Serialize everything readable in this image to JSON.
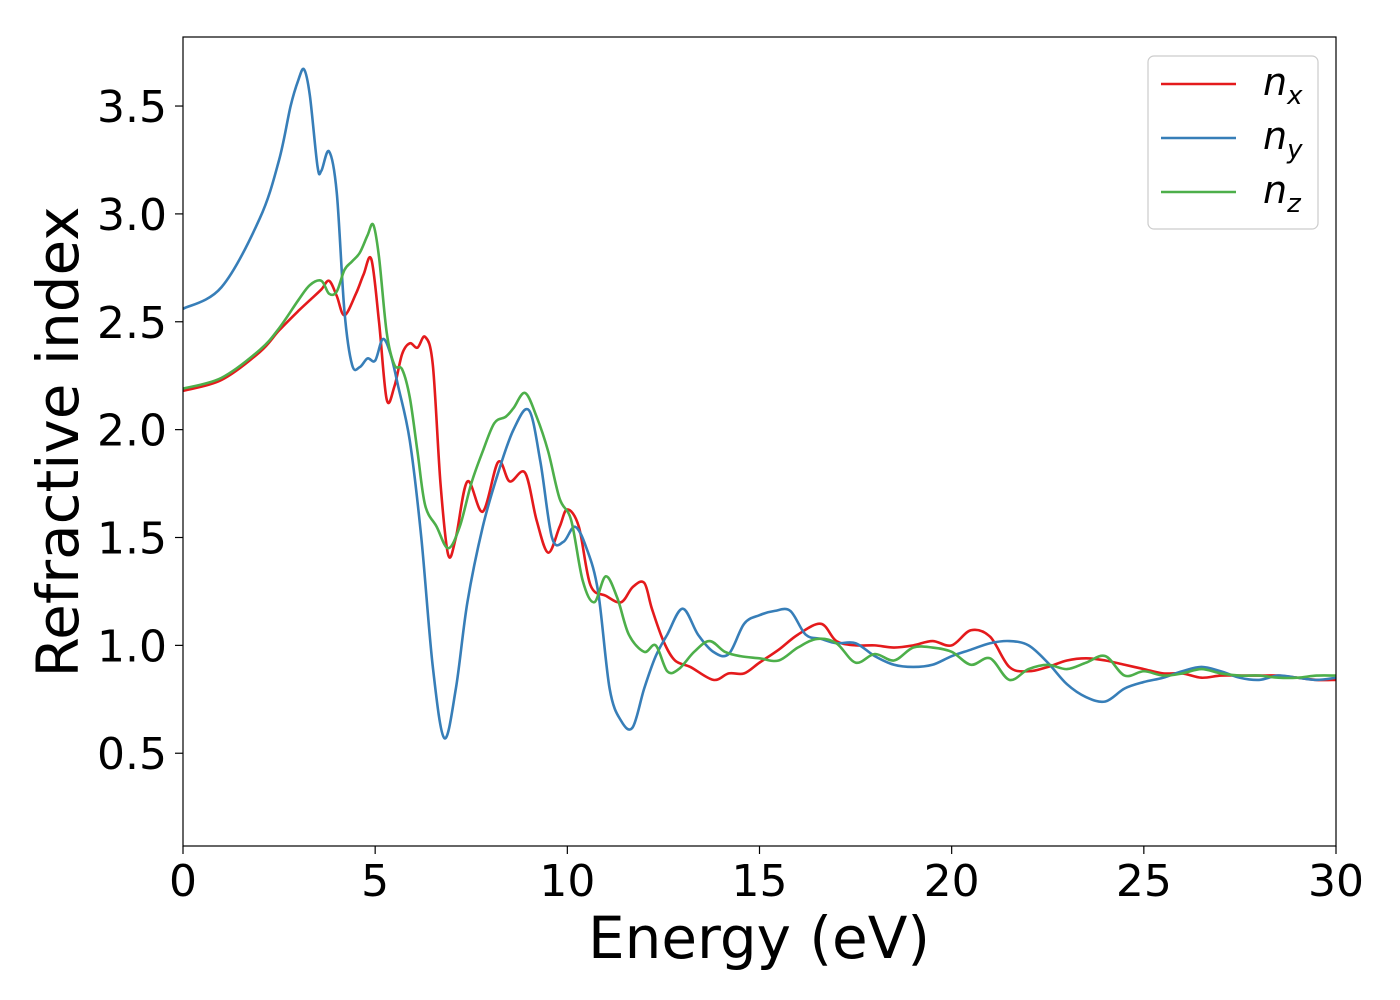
{
  "chart_data": {
    "type": "line",
    "xlabel": "Energy (eV)",
    "ylabel": "Refractive index",
    "xlim": [
      0,
      30
    ],
    "ylim": [
      0.07,
      3.82
    ],
    "xticks": [
      "0",
      "5",
      "10",
      "15",
      "20",
      "25",
      "30"
    ],
    "yticks": [
      "0.5",
      "1.0",
      "1.5",
      "2.0",
      "2.5",
      "3.0",
      "3.5"
    ],
    "grid": false,
    "legend_position": "top-right",
    "series": [
      {
        "name": "n_x",
        "label_base": "n",
        "label_sub": "x",
        "color": "#e41a1c",
        "x": [
          0,
          1,
          2,
          2.5,
          3,
          3.3,
          3.6,
          3.8,
          4.0,
          4.2,
          4.5,
          4.7,
          4.9,
          5.1,
          5.3,
          5.5,
          5.7,
          5.9,
          6.1,
          6.3,
          6.5,
          6.7,
          6.9,
          7.1,
          7.4,
          7.8,
          8.2,
          8.5,
          8.9,
          9.2,
          9.5,
          9.8,
          10.0,
          10.3,
          10.6,
          11.0,
          11.4,
          11.7,
          12.0,
          12.2,
          12.5,
          12.8,
          13.2,
          13.8,
          14.2,
          14.6,
          15.0,
          15.5,
          16.0,
          16.6,
          17.0,
          17.5,
          18.0,
          18.5,
          19.0,
          19.5,
          20.0,
          20.5,
          21.0,
          21.5,
          22.0,
          22.5,
          23.0,
          23.5,
          24.0,
          24.5,
          25.0,
          25.5,
          26.0,
          26.5,
          27.0,
          27.5,
          28.0,
          28.5,
          29.0,
          29.5,
          30.0
        ],
        "y": [
          2.18,
          2.23,
          2.36,
          2.46,
          2.55,
          2.6,
          2.65,
          2.69,
          2.62,
          2.53,
          2.63,
          2.72,
          2.79,
          2.5,
          2.14,
          2.2,
          2.35,
          2.4,
          2.38,
          2.43,
          2.3,
          1.75,
          1.42,
          1.5,
          1.76,
          1.62,
          1.85,
          1.76,
          1.8,
          1.58,
          1.43,
          1.55,
          1.63,
          1.55,
          1.28,
          1.23,
          1.2,
          1.27,
          1.29,
          1.17,
          1.02,
          0.93,
          0.9,
          0.84,
          0.87,
          0.87,
          0.92,
          0.98,
          1.05,
          1.1,
          1.02,
          1.0,
          1.0,
          0.99,
          1.0,
          1.02,
          1.0,
          1.07,
          1.04,
          0.9,
          0.88,
          0.9,
          0.93,
          0.94,
          0.93,
          0.91,
          0.89,
          0.87,
          0.87,
          0.85,
          0.86,
          0.86,
          0.86,
          0.86,
          0.85,
          0.84,
          0.84
        ]
      },
      {
        "name": "n_y",
        "label_base": "n",
        "label_sub": "y",
        "color": "#377eb8",
        "x": [
          0,
          1,
          2,
          2.5,
          2.8,
          3.0,
          3.15,
          3.3,
          3.5,
          3.6,
          3.8,
          4.0,
          4.2,
          4.4,
          4.6,
          4.8,
          5.0,
          5.2,
          5.4,
          5.6,
          5.9,
          6.2,
          6.5,
          6.8,
          7.1,
          7.4,
          7.8,
          8.2,
          8.6,
          9.0,
          9.3,
          9.6,
          9.9,
          10.2,
          10.5,
          10.8,
          11.1,
          11.4,
          11.7,
          12.0,
          12.3,
          12.6,
          13.0,
          13.4,
          13.8,
          14.2,
          14.6,
          15.0,
          15.4,
          15.8,
          16.2,
          16.6,
          17.0,
          17.5,
          18.0,
          18.5,
          19.0,
          19.5,
          20.0,
          20.5,
          21.0,
          21.5,
          22.0,
          22.5,
          23.0,
          23.5,
          24.0,
          24.5,
          25.0,
          25.5,
          26.0,
          26.5,
          27.0,
          27.5,
          28.0,
          28.5,
          29.0,
          29.5,
          30.0
        ],
        "y": [
          2.56,
          2.66,
          2.98,
          3.25,
          3.5,
          3.62,
          3.67,
          3.55,
          3.22,
          3.2,
          3.29,
          3.1,
          2.55,
          2.3,
          2.29,
          2.33,
          2.32,
          2.42,
          2.35,
          2.2,
          1.95,
          1.5,
          0.9,
          0.57,
          0.8,
          1.2,
          1.55,
          1.8,
          2.0,
          2.09,
          1.85,
          1.5,
          1.48,
          1.55,
          1.45,
          1.25,
          0.8,
          0.65,
          0.62,
          0.8,
          0.95,
          1.05,
          1.17,
          1.05,
          0.97,
          0.96,
          1.1,
          1.14,
          1.16,
          1.16,
          1.05,
          1.03,
          1.01,
          1.01,
          0.95,
          0.91,
          0.9,
          0.91,
          0.95,
          0.98,
          1.01,
          1.02,
          1.0,
          0.92,
          0.82,
          0.76,
          0.74,
          0.8,
          0.83,
          0.85,
          0.88,
          0.9,
          0.88,
          0.85,
          0.84,
          0.86,
          0.85,
          0.84,
          0.85
        ]
      },
      {
        "name": "n_z",
        "label_base": "n",
        "label_sub": "z",
        "color": "#4daf4a",
        "x": [
          0,
          1,
          2,
          2.5,
          3,
          3.3,
          3.6,
          3.8,
          4.0,
          4.2,
          4.4,
          4.6,
          4.8,
          4.95,
          5.1,
          5.3,
          5.5,
          5.7,
          5.9,
          6.1,
          6.3,
          6.6,
          6.9,
          7.2,
          7.5,
          7.8,
          8.1,
          8.4,
          8.6,
          8.9,
          9.2,
          9.5,
          9.8,
          10.1,
          10.4,
          10.7,
          11.0,
          11.3,
          11.6,
          12.0,
          12.3,
          12.6,
          12.9,
          13.3,
          13.7,
          14.1,
          14.5,
          15.0,
          15.5,
          16.0,
          16.5,
          17.0,
          17.5,
          18.0,
          18.5,
          19.0,
          19.5,
          20.0,
          20.5,
          21.0,
          21.5,
          22.0,
          22.5,
          23.0,
          23.5,
          24.0,
          24.5,
          25.0,
          25.5,
          26.0,
          26.5,
          27.0,
          27.5,
          28.0,
          28.5,
          29.0,
          29.5,
          30.0
        ],
        "y": [
          2.19,
          2.24,
          2.37,
          2.47,
          2.6,
          2.67,
          2.69,
          2.63,
          2.64,
          2.74,
          2.78,
          2.82,
          2.9,
          2.95,
          2.8,
          2.45,
          2.3,
          2.28,
          2.15,
          1.9,
          1.65,
          1.55,
          1.45,
          1.55,
          1.75,
          1.9,
          2.03,
          2.06,
          2.1,
          2.17,
          2.06,
          1.9,
          1.68,
          1.58,
          1.3,
          1.2,
          1.32,
          1.22,
          1.05,
          0.97,
          1.0,
          0.88,
          0.89,
          0.97,
          1.02,
          0.97,
          0.95,
          0.94,
          0.93,
          0.99,
          1.03,
          1.01,
          0.92,
          0.96,
          0.93,
          0.99,
          0.99,
          0.97,
          0.91,
          0.94,
          0.84,
          0.89,
          0.91,
          0.89,
          0.92,
          0.95,
          0.86,
          0.88,
          0.86,
          0.87,
          0.89,
          0.87,
          0.86,
          0.86,
          0.85,
          0.85,
          0.86,
          0.86
        ]
      }
    ]
  }
}
